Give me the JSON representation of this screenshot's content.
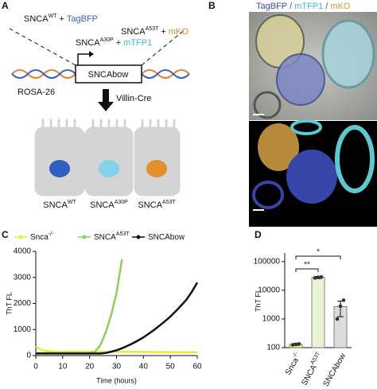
{
  "panel_labels": [
    "A",
    "B",
    "C",
    "D"
  ],
  "diagram": {
    "constructs": [
      {
        "gene": "SNCA",
        "variant": "WT",
        "plus": "+",
        "reporter": "TagBFP"
      },
      {
        "gene": "SNCA",
        "variant": "A53T",
        "plus": "+",
        "reporter": "mKO"
      },
      {
        "gene": "SNCA",
        "variant": "A30P",
        "plus": "+",
        "reporter": "mTFP1"
      }
    ],
    "box": "SNCAbow",
    "locus": "ROSA-26",
    "driver": "Villin-Cre",
    "cells": [
      {
        "gene": "SNCA",
        "variant": "WT"
      },
      {
        "gene": "SNCA",
        "variant": "A30P"
      },
      {
        "gene": "SNCA",
        "variant": "A53T"
      }
    ]
  },
  "images": {
    "legend": [
      "TagBFP",
      "/",
      "mTFP1",
      "/",
      "mKO"
    ]
  },
  "chart_data": [
    {
      "type": "line",
      "x_label": "Time (hours)",
      "y_label": "ThT FL",
      "x": [
        0,
        2,
        4,
        6,
        8,
        10,
        12,
        14,
        16,
        18,
        20,
        22,
        24,
        26,
        28,
        30,
        32,
        34,
        36,
        38,
        40,
        42,
        44,
        46,
        48,
        50,
        52,
        54,
        56,
        58,
        60
      ],
      "series": [
        {
          "name": "Snca",
          "sup": "-/-",
          "color": "#e8e83a",
          "values": [
            350,
            220,
            180,
            160,
            150,
            150,
            150,
            150,
            150,
            150,
            150,
            150,
            150,
            145,
            145,
            145,
            140,
            140,
            140,
            140,
            140,
            140,
            135,
            135,
            135,
            135,
            135,
            130,
            130,
            130,
            130
          ]
        },
        {
          "name": "SNCA",
          "sup": "A53T",
          "color": "#8fce5e",
          "values": [
            100,
            100,
            100,
            100,
            100,
            100,
            100,
            100,
            100,
            100,
            100,
            150,
            400,
            900,
            1550,
            2400,
            3700,
            null,
            null,
            null,
            null,
            null,
            null,
            null,
            null,
            null,
            null,
            null,
            null,
            null,
            null
          ]
        },
        {
          "name": "SNCAbow",
          "color": "#111111",
          "values": [
            80,
            80,
            80,
            80,
            80,
            80,
            80,
            80,
            80,
            80,
            80,
            80,
            80,
            100,
            150,
            200,
            280,
            370,
            470,
            580,
            700,
            840,
            990,
            1150,
            1320,
            1500,
            1700,
            1920,
            2150,
            2450,
            2800
          ]
        }
      ],
      "xlim": [
        0,
        60
      ],
      "xticks": [
        0,
        10,
        20,
        30,
        40,
        50,
        60
      ],
      "ylim": [
        0,
        4000
      ],
      "yticks": [
        0,
        1000,
        2000,
        3000,
        4000
      ]
    },
    {
      "type": "bar",
      "y_label": "ThT FL",
      "log_scale": true,
      "categories": [
        {
          "name": "Snca",
          "sup": "-/-"
        },
        {
          "name": "SNCA",
          "sup": "A53T"
        },
        {
          "name": "SNCAbow"
        }
      ],
      "values": [
        130,
        28000,
        2700
      ],
      "errors": [
        10,
        2500,
        1500
      ],
      "points": [
        [
          125,
          130,
          135
        ],
        [
          27000,
          28500,
          29000
        ],
        [
          1000,
          2800,
          4500
        ]
      ],
      "colors": [
        "#f2f27a",
        "#e9f5d2",
        "#dcdcdc"
      ],
      "annotations": [
        "**",
        "*"
      ],
      "ylim": [
        100,
        200000
      ],
      "yticks": [
        100,
        1000,
        10000,
        100000
      ]
    }
  ]
}
